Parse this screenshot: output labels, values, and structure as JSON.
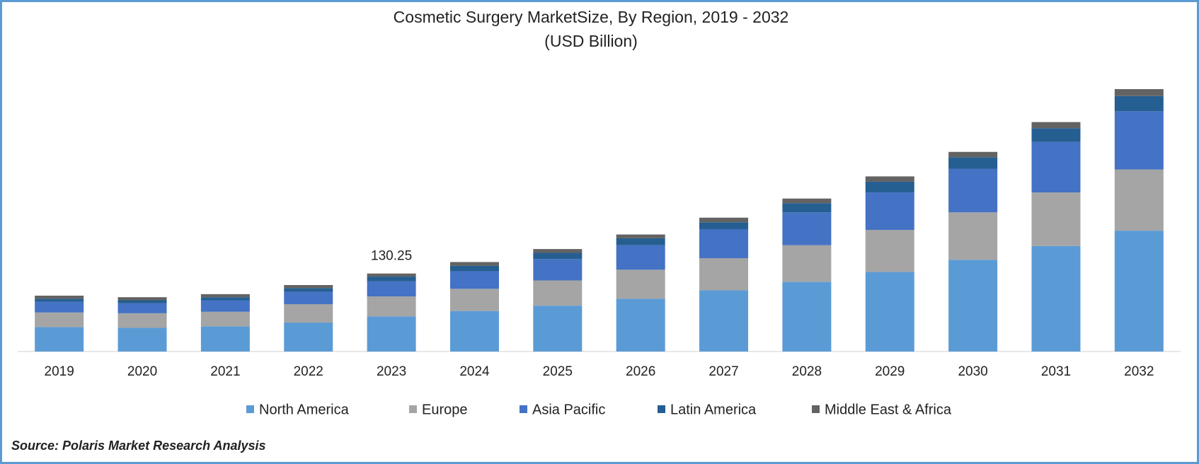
{
  "chart_data": {
    "type": "stacked_bar",
    "title": "Cosmetic Surgery MarketSize, By Region, 2019 - 2032",
    "subtitle": "(USD Billion)",
    "categories": [
      "2019",
      "2020",
      "2021",
      "2022",
      "2023",
      "2024",
      "2025",
      "2026",
      "2027",
      "2028",
      "2029",
      "2030",
      "2031",
      "2032"
    ],
    "series": [
      {
        "name": "North America",
        "color": "#5b9bd5",
        "values": [
          40.9,
          39.6,
          42.1,
          48.5,
          58.7,
          67.7,
          76.6,
          88.1,
          102.2,
          116.2,
          132.8,
          153.2,
          176.2,
          201.8
        ]
      },
      {
        "name": "Europe",
        "color": "#a5a5a5",
        "values": [
          24.3,
          24.3,
          24.3,
          30.6,
          33.2,
          37.0,
          42.1,
          48.5,
          53.6,
          61.3,
          70.2,
          79.2,
          89.4,
          102.2
        ]
      },
      {
        "name": "Asia Pacific",
        "color": "#4472c4",
        "values": [
          17.9,
          16.6,
          19.2,
          20.4,
          25.5,
          29.4,
          35.8,
          40.9,
          48.5,
          54.9,
          62.6,
          72.8,
          84.3,
          97.1
        ]
      },
      {
        "name": "Latin America",
        "color": "#255e91",
        "values": [
          5.1,
          5.1,
          5.1,
          6.4,
          7.7,
          8.9,
          10.2,
          11.5,
          11.5,
          15.3,
          17.9,
          19.2,
          23.0,
          25.5
        ]
      },
      {
        "name": "Middle East & Africa",
        "color": "#636363",
        "values": [
          5.1,
          5.1,
          5.1,
          5.1,
          5.15,
          6.4,
          6.4,
          6.4,
          7.7,
          7.7,
          8.9,
          8.9,
          10.2,
          11.5
        ]
      }
    ],
    "total_labels": [
      null,
      null,
      null,
      null,
      130.25,
      null,
      null,
      null,
      null,
      null,
      null,
      null,
      null,
      null
    ],
    "legend": "bottom",
    "source": "Source: Polaris Market Research Analysis"
  }
}
